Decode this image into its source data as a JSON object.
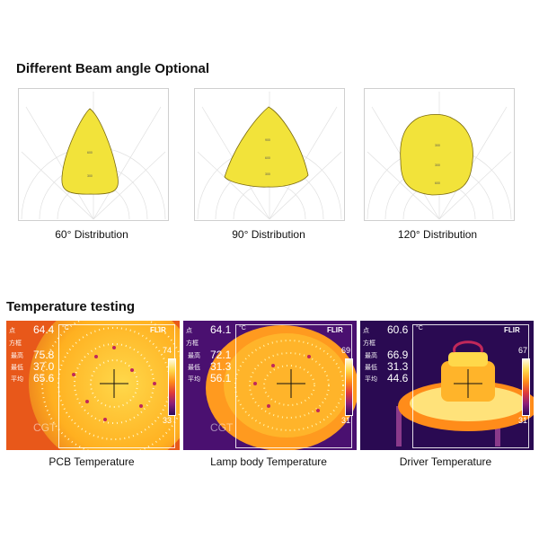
{
  "beam_section": {
    "title": "Different Beam angle Optional",
    "charts": [
      {
        "caption": "60° Distribution"
      },
      {
        "caption": "90° Distribution"
      },
      {
        "caption": "120° Distribution"
      }
    ]
  },
  "temperature_section": {
    "title": "Temperature testing",
    "unit": "°C",
    "logo": "FLIR",
    "watermark": "CGT",
    "labels": {
      "point": "点",
      "box": "方框",
      "max": "最高",
      "min": "最低",
      "avg": "平均"
    },
    "panels": [
      {
        "caption": "PCB Temperature",
        "spot": "64.4",
        "max": "75.8",
        "min": "37.0",
        "avg": "65.6",
        "scale_top": "74",
        "scale_bottom": "33"
      },
      {
        "caption": "Lamp body Temperature",
        "spot": "64.1",
        "max": "72.1",
        "min": "31.3",
        "avg": "56.1",
        "scale_top": "69",
        "scale_bottom": "31"
      },
      {
        "caption": "Driver Temperature",
        "spot": "60.6",
        "max": "66.9",
        "min": "31.3",
        "avg": "44.6",
        "scale_top": "67",
        "scale_bottom": "31"
      }
    ]
  },
  "colors": {
    "beam_fill": "#f2e33a",
    "beam_stroke": "#7a6a10",
    "hot": "#ffe27a",
    "warm": "#ff9a1f",
    "cool": "#3a0d66"
  }
}
